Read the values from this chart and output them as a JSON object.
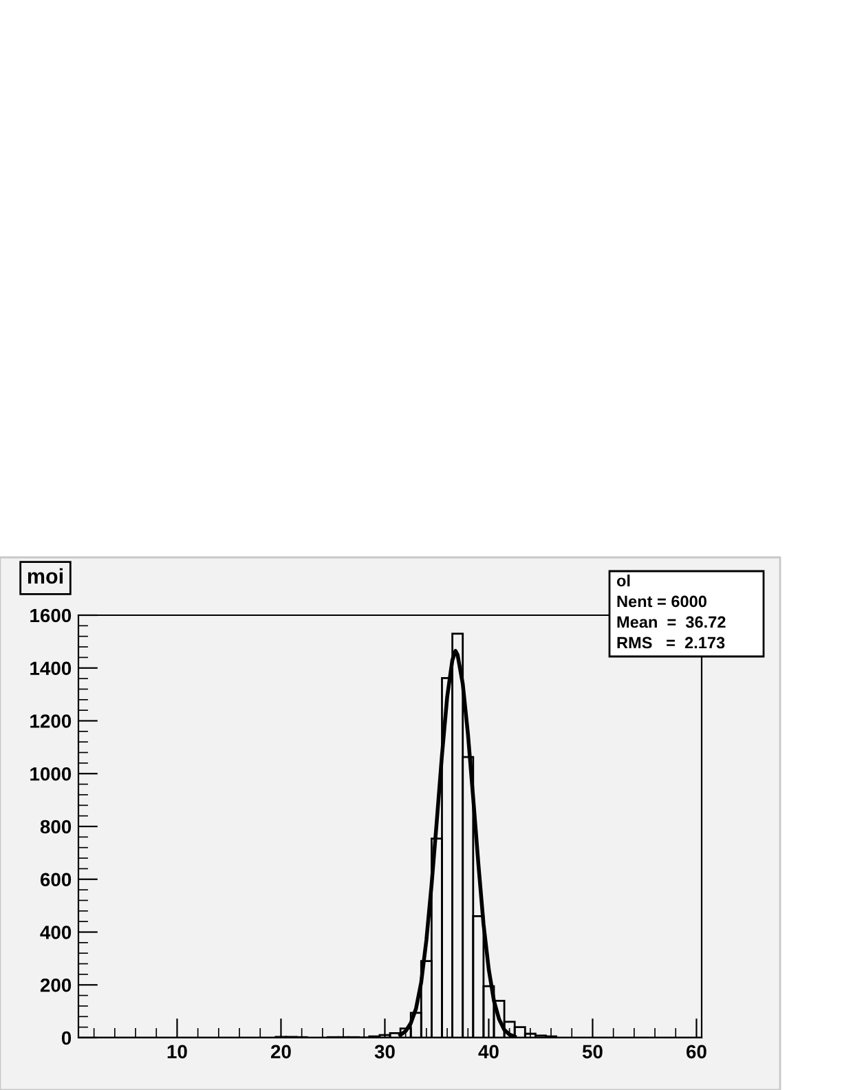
{
  "chart_data": {
    "type": "histogram",
    "title": "moi",
    "series": [
      {
        "type": "histogram",
        "color": "#000000",
        "bins": [
          0.5,
          1.5,
          2.5,
          3.5,
          4.5,
          5.5,
          6.5,
          7.5,
          8.5,
          9.5,
          10.5,
          11.5,
          12.5,
          13.5,
          14.5,
          15.5,
          16.5,
          17.5,
          18.5,
          19.5,
          20.5,
          21.5,
          22.5,
          23.5,
          24.5,
          25.5,
          26.5,
          27.5,
          28.5,
          29.5,
          30.5,
          31.5,
          32.5,
          33.5,
          34.5,
          35.5,
          36.5,
          37.5,
          38.5,
          39.5,
          40.5,
          41.5,
          42.5,
          43.5,
          44.5,
          45.5,
          46.5,
          47.5,
          48.5,
          49.5,
          50.5,
          51.5,
          52.5,
          53.5,
          54.5,
          55.5,
          56.5,
          57.5,
          58.5,
          59.5,
          60.5
        ],
        "values": [
          0,
          0,
          0,
          0,
          0,
          0,
          0,
          0,
          0,
          0,
          0,
          0,
          0,
          0,
          0,
          0,
          0,
          0,
          0,
          3,
          3,
          2,
          0,
          0,
          2,
          2,
          2,
          1,
          5,
          10,
          17,
          35,
          94,
          290,
          754,
          1362,
          1530,
          1063,
          460,
          195,
          140,
          60,
          40,
          15,
          8,
          5,
          0,
          0,
          0,
          0,
          0,
          0,
          0,
          0,
          0,
          0,
          0,
          0,
          0,
          0
        ]
      },
      {
        "type": "line",
        "color": "#000000",
        "x": [
          31.5,
          32,
          32.5,
          33,
          33.5,
          34,
          34.5,
          35,
          35.5,
          36,
          36.5,
          36.8,
          37,
          37.5,
          38,
          38.5,
          39,
          39.5,
          40,
          40.5,
          41,
          41.5,
          42,
          42.5
        ],
        "values": [
          10,
          25,
          55,
          110,
          210,
          370,
          580,
          820,
          1070,
          1290,
          1430,
          1465,
          1450,
          1340,
          1150,
          910,
          660,
          430,
          260,
          140,
          70,
          30,
          12,
          4
        ]
      }
    ],
    "annotations": [
      "ol",
      "Nent = 6000",
      "Mean  =  36.72",
      "RMS   =  2.173"
    ],
    "xlim": [
      0.5,
      60.5
    ],
    "xticks": [
      10,
      20,
      30,
      40,
      50,
      60
    ],
    "ylim": [
      0,
      1600
    ],
    "yticks": [
      0,
      200,
      400,
      600,
      800,
      1000,
      1200,
      1400,
      1600
    ],
    "grid": false
  }
}
